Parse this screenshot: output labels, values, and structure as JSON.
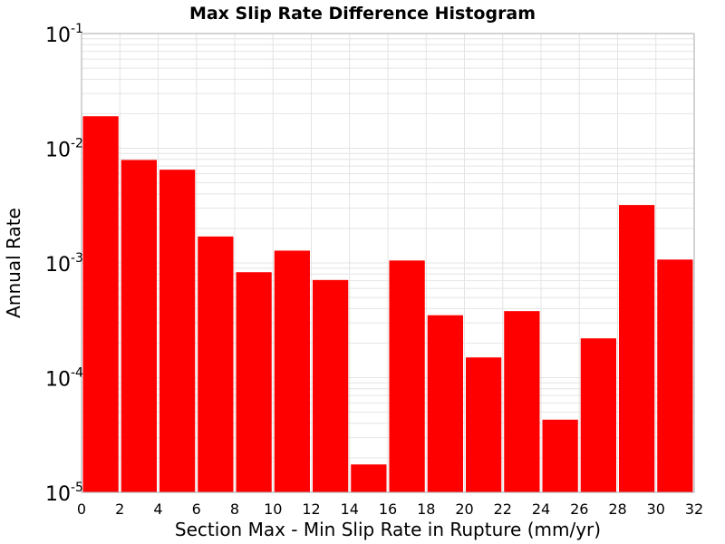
{
  "chart_data": {
    "type": "bar",
    "title": "Max Slip Rate Difference Histogram",
    "xlabel": "Section Max - Min Slip Rate in Rupture (mm/yr)",
    "ylabel": "Annual Rate",
    "x_bin_width": 2,
    "x": [
      1,
      3,
      5,
      7,
      9,
      11,
      13,
      15,
      17,
      19,
      21,
      23,
      25,
      27,
      29,
      31
    ],
    "values": [
      0.019,
      0.0079,
      0.0065,
      0.0017,
      0.00083,
      0.00128,
      0.00071,
      1.75e-05,
      0.00105,
      0.00035,
      0.00015,
      0.00038,
      4.3e-05,
      0.00022,
      0.0032,
      0.00107
    ],
    "xlim": [
      0,
      32
    ],
    "ylim": [
      1e-05,
      0.1
    ],
    "yscale": "log",
    "xticks": [
      "0",
      "2",
      "4",
      "6",
      "8",
      "10",
      "12",
      "14",
      "16",
      "18",
      "20",
      "22",
      "24",
      "26",
      "28",
      "30",
      "32"
    ],
    "yticks": [
      {
        "base": "10",
        "exp": "-5"
      },
      {
        "base": "10",
        "exp": "-4"
      },
      {
        "base": "10",
        "exp": "-3"
      },
      {
        "base": "10",
        "exp": "-2"
      },
      {
        "base": "10",
        "exp": "-1"
      }
    ],
    "grid": true,
    "bar_color": "#ff0000",
    "grid_color": "#e4e4e4"
  }
}
